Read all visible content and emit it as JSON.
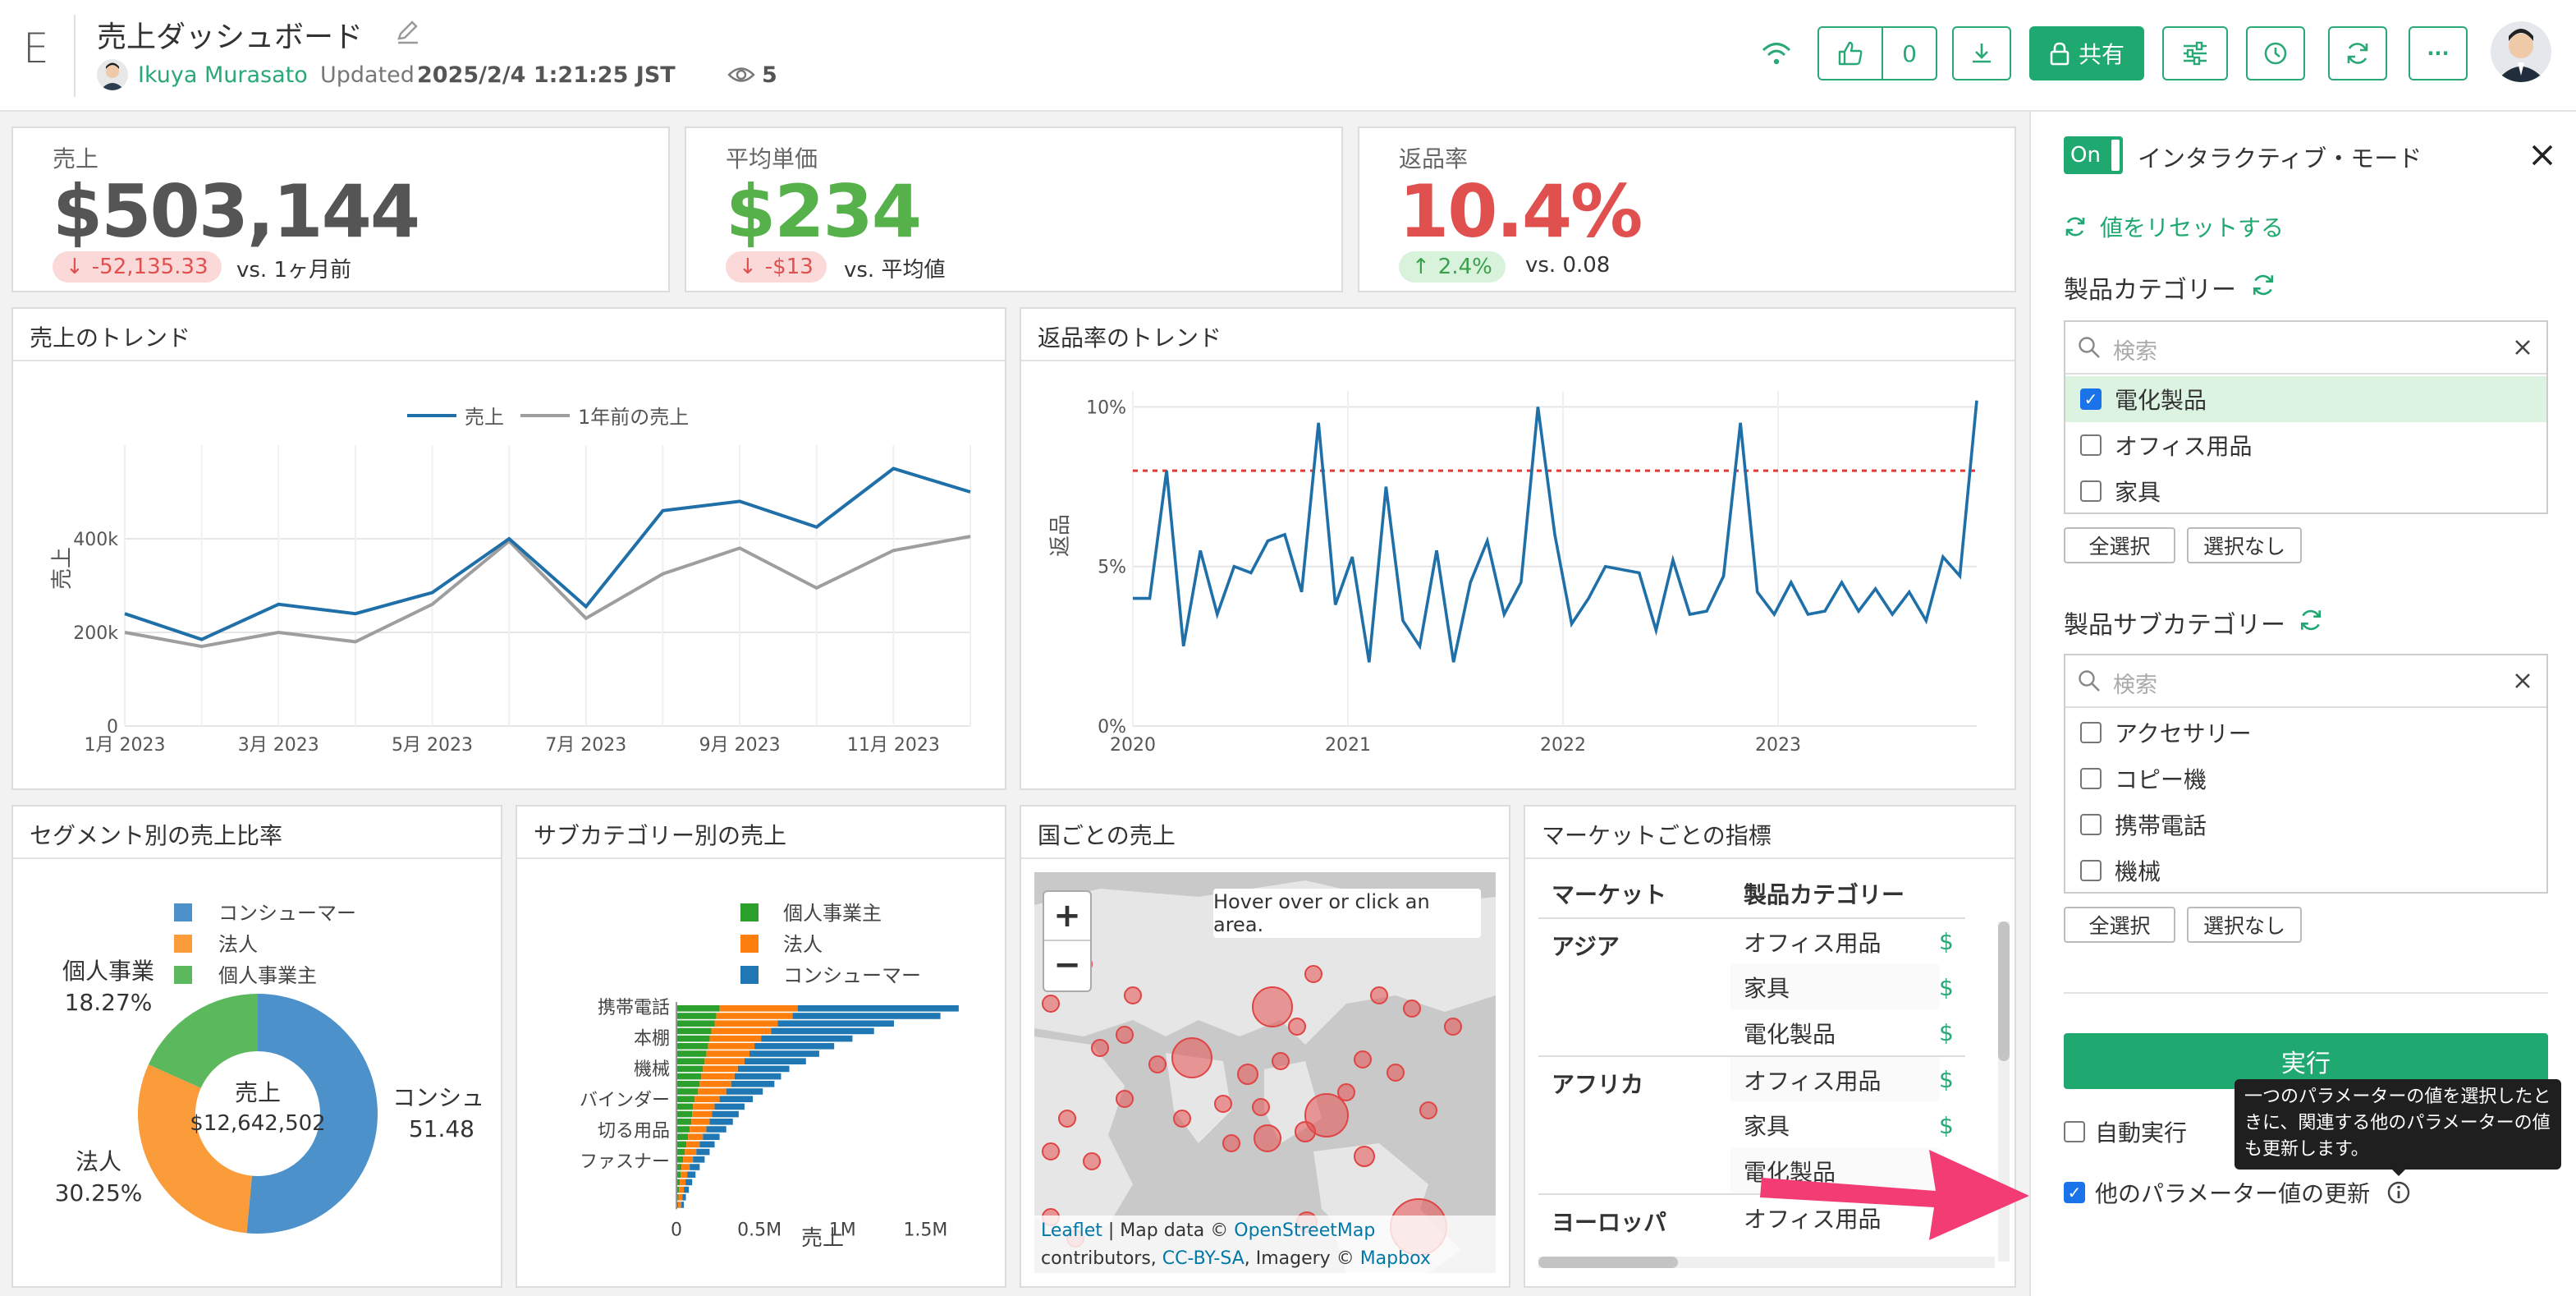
{
  "header": {
    "logo": "E",
    "title": "売上ダッシュボード",
    "author": "Ikuya Murasato",
    "updated_label": "Updated",
    "updated_value": "2025/2/4 1:21:25 JST",
    "views": "5",
    "like_count": "0",
    "share_label": "共有",
    "more_label": "···"
  },
  "kpis": [
    {
      "label": "売上",
      "value": "$503,144",
      "delta": "-52,135.33",
      "compare": "vs. 1ヶ月前",
      "value_color": "#555555",
      "delta_dir": "down"
    },
    {
      "label": "平均単価",
      "value": "$234",
      "delta": "-$13",
      "compare": "vs. 平均値",
      "value_color": "#56b14b",
      "delta_dir": "down"
    },
    {
      "label": "返品率",
      "value": "10.4%",
      "delta": "2.4%",
      "compare": "vs. 0.08",
      "value_color": "#e0504e",
      "delta_dir": "up"
    }
  ],
  "sales_trend": {
    "title": "売上のトレンド",
    "chart_data": {
      "type": "line",
      "x": [
        "2023-01",
        "2023-02",
        "2023-03",
        "2023-04",
        "2023-05",
        "2023-06",
        "2023-07",
        "2023-08",
        "2023-09",
        "2023-10",
        "2023-11",
        "2023-12"
      ],
      "series": [
        {
          "name": "売上",
          "values": [
            240000,
            185000,
            260000,
            240000,
            285000,
            400000,
            255000,
            460000,
            480000,
            425000,
            550000,
            500000
          ],
          "color": "#1f6fa8"
        },
        {
          "name": "1年前の売上",
          "values": [
            200000,
            170000,
            200000,
            180000,
            260000,
            395000,
            230000,
            325000,
            380000,
            295000,
            375000,
            405000
          ],
          "color": "#9e9e9e"
        }
      ],
      "ylabel": "売上",
      "yticks": [
        "0",
        "200k",
        "400k"
      ],
      "xticks": [
        "1月 2023",
        "3月 2023",
        "5月 2023",
        "7月 2023",
        "9月 2023",
        "11月 2023"
      ],
      "ylim": [
        0,
        600000
      ],
      "legend": "top"
    }
  },
  "return_trend": {
    "title": "返品率のトレンド",
    "chart_data": {
      "type": "line",
      "series": [
        {
          "values": [
            4,
            4,
            8,
            2.5,
            5.5,
            3.5,
            5,
            4.8,
            5.8,
            6,
            4.2,
            9.5,
            3.8,
            5.3,
            2,
            7.5,
            3.3,
            2.5,
            5.5,
            2,
            4.5,
            5.8,
            3.5,
            4.5,
            10,
            6,
            3.2,
            4,
            5,
            4.9,
            4.8,
            3,
            5.2,
            3.5,
            3.6,
            4.7,
            9.5,
            4.2,
            3.5,
            4.5,
            3.5,
            3.6,
            4.5,
            3.6,
            4.3,
            3.5,
            4.2,
            3.3,
            5.3,
            4.7,
            10.2
          ],
          "color": "#1f6fa8"
        }
      ],
      "ylabel": "返品",
      "yticks": [
        "0%",
        "5%",
        "10%"
      ],
      "xticks": [
        "2020",
        "2021",
        "2022",
        "2023"
      ],
      "ylim": [
        0,
        10.5
      ],
      "target_line": 8,
      "target_color": "#e53935"
    }
  },
  "segment": {
    "title": "セグメント別の売上比率",
    "chart_data": {
      "type": "pie",
      "labels": [
        "コンシューマー",
        "法人",
        "個人事業主"
      ],
      "values": [
        51.48,
        30.25,
        18.27
      ],
      "colors": [
        "#4c91c9",
        "#fa9c3a",
        "#5cb85c"
      ],
      "center_label": "売上",
      "center_value": "$12,642,502",
      "outer_labels": [
        {
          "name": "コンシュ",
          "pct": "51.48"
        },
        {
          "name": "法人",
          "pct": "30.25%"
        },
        {
          "name": "個人事業",
          "pct": "18.27%"
        }
      ]
    }
  },
  "subcategory": {
    "title": "サブカテゴリー別の売上",
    "chart_data": {
      "type": "bar",
      "orientation": "horizontal",
      "stacked": true,
      "legend": [
        "個人事業主",
        "法人",
        "コンシューマー"
      ],
      "legend_colors": [
        "#2ca02c",
        "#ff7f0e",
        "#1f77b4"
      ],
      "category_labels": [
        "携帯電話",
        "本棚",
        "機械",
        "バインダー",
        "切る用品",
        "ファスナー"
      ],
      "xticks": [
        "0",
        "0.5M",
        "1M",
        "1.5M"
      ],
      "xlabel": "売上",
      "xlim": [
        0,
        1750000
      ],
      "series": [
        {
          "name": "個人事業主",
          "values": [
            260000,
            240000,
            230000,
            210000,
            200000,
            190000,
            180000,
            170000,
            160000,
            150000,
            140000,
            130000,
            110000,
            100000,
            95000,
            90000,
            80000,
            70000,
            60000,
            50000,
            40000,
            30000,
            25000,
            20000,
            15000,
            12000,
            10000
          ]
        },
        {
          "name": "法人",
          "values": [
            470000,
            460000,
            380000,
            360000,
            310000,
            280000,
            260000,
            240000,
            210000,
            200000,
            190000,
            170000,
            150000,
            130000,
            120000,
            110000,
            100000,
            90000,
            80000,
            70000,
            60000,
            50000,
            40000,
            35000,
            30000,
            25000,
            20000
          ]
        },
        {
          "name": "コンシューマー",
          "values": [
            970000,
            890000,
            700000,
            620000,
            550000,
            480000,
            420000,
            370000,
            310000,
            280000,
            260000,
            220000,
            200000,
            180000,
            160000,
            140000,
            120000,
            100000,
            90000,
            80000,
            70000,
            60000,
            50000,
            40000,
            30000,
            20000,
            15000
          ]
        }
      ]
    }
  },
  "map": {
    "title": "国ごとの売上",
    "hover_text": "Hover over or click an area.",
    "zoom_in": "+",
    "zoom_out": "−",
    "attribution_parts": [
      "Leaflet",
      " | Map data © ",
      "OpenStreetMap",
      " contributors, ",
      "CC-BY-SA",
      ", Imagery © ",
      "Mapbox"
    ]
  },
  "market": {
    "title": "マーケットごとの指標",
    "headers": [
      "マーケット",
      "製品カテゴリー"
    ],
    "rows": [
      {
        "market": "アジア",
        "cat": "オフィス用品"
      },
      {
        "market": "",
        "cat": "家具"
      },
      {
        "market": "",
        "cat": "電化製品"
      },
      {
        "market": "アフリカ",
        "cat": "オフィス用品"
      },
      {
        "market": "",
        "cat": "家具"
      },
      {
        "market": "",
        "cat": "電化製品"
      },
      {
        "market": "ヨーロッパ",
        "cat": "オフィス用品"
      }
    ],
    "value_prefix": "$"
  },
  "panel": {
    "toggle": "On",
    "mode_label": "インタラクティブ・モード",
    "reset": "値をリセットする",
    "cat_label": "製品カテゴリー",
    "cat_search": "検索",
    "cat_options": [
      {
        "label": "電化製品",
        "checked": true
      },
      {
        "label": "オフィス用品",
        "checked": false
      },
      {
        "label": "家具",
        "checked": false
      }
    ],
    "select_all": "全選択",
    "select_none": "選択なし",
    "subcat_label": "製品サブカテゴリー",
    "subcat_search": "検索",
    "subcat_options": [
      {
        "label": "アクセサリー",
        "checked": false
      },
      {
        "label": "コピー機",
        "checked": false
      },
      {
        "label": "携帯電話",
        "checked": false
      },
      {
        "label": "機械",
        "checked": false
      }
    ],
    "run": "実行",
    "auto_run": "自動実行",
    "update_params": "他のパラメーター値の更新",
    "tooltip": "一つのパラメーターの値を選択したときに、関連する他のパラメーターの値も更新します。"
  }
}
